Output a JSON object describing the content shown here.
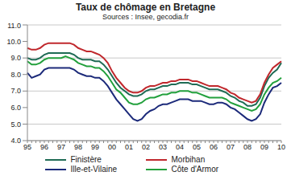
{
  "chart_data": {
    "type": "line",
    "title": "Taux de chômage en Bretagne",
    "subtitle": "Sources : Insee, gecodia.fr",
    "categories": [
      "95",
      null,
      null,
      null,
      "96",
      null,
      null,
      null,
      "97",
      null,
      null,
      null,
      "98",
      null,
      null,
      null,
      "99",
      null,
      null,
      null,
      "00",
      null,
      null,
      null,
      "01",
      null,
      null,
      null,
      "02",
      null,
      null,
      null,
      "03",
      null,
      null,
      null,
      "04",
      null,
      null,
      null,
      "05",
      null,
      null,
      null,
      "06",
      null,
      null,
      null,
      "07",
      null,
      null,
      null,
      "08",
      null,
      null,
      null,
      "09",
      null,
      null,
      null,
      "10"
    ],
    "series": [
      {
        "name": "Finistère",
        "color": "#1f6b55",
        "values": [
          9.0,
          8.9,
          8.9,
          9.0,
          9.2,
          9.3,
          9.3,
          9.3,
          9.3,
          9.3,
          9.3,
          9.2,
          9.0,
          8.9,
          8.9,
          8.9,
          8.8,
          8.8,
          8.6,
          8.3,
          7.9,
          7.5,
          7.2,
          7.0,
          6.8,
          6.7,
          6.7,
          6.8,
          7.0,
          7.1,
          7.1,
          7.2,
          7.3,
          7.3,
          7.4,
          7.4,
          7.5,
          7.5,
          7.5,
          7.4,
          7.4,
          7.3,
          7.2,
          7.1,
          7.1,
          7.1,
          7.0,
          6.9,
          6.7,
          6.6,
          6.4,
          6.3,
          6.1,
          6.1,
          6.2,
          6.6,
          7.3,
          7.8,
          8.1,
          8.3,
          8.7
        ]
      },
      {
        "name": "Morbihan",
        "color": "#c0282d",
        "values": [
          9.6,
          9.5,
          9.5,
          9.6,
          9.8,
          9.9,
          9.9,
          9.9,
          9.9,
          9.9,
          9.9,
          9.8,
          9.6,
          9.5,
          9.4,
          9.4,
          9.3,
          9.2,
          9.0,
          8.7,
          8.2,
          7.8,
          7.5,
          7.2,
          7.0,
          6.9,
          6.9,
          7.0,
          7.2,
          7.3,
          7.3,
          7.4,
          7.5,
          7.5,
          7.6,
          7.6,
          7.7,
          7.7,
          7.7,
          7.6,
          7.6,
          7.5,
          7.4,
          7.3,
          7.3,
          7.3,
          7.2,
          7.1,
          6.9,
          6.8,
          6.6,
          6.5,
          6.4,
          6.3,
          6.4,
          6.8,
          7.5,
          8.0,
          8.4,
          8.6,
          8.8
        ]
      },
      {
        "name": "Ille-et-Vilaine",
        "color": "#1c2a7a",
        "values": [
          8.1,
          7.8,
          7.9,
          8.0,
          8.3,
          8.4,
          8.4,
          8.4,
          8.4,
          8.4,
          8.4,
          8.3,
          8.1,
          8.0,
          7.9,
          7.9,
          7.8,
          7.8,
          7.6,
          7.3,
          6.9,
          6.5,
          6.2,
          5.9,
          5.6,
          5.3,
          5.2,
          5.3,
          5.6,
          5.8,
          5.9,
          6.1,
          6.2,
          6.2,
          6.3,
          6.4,
          6.5,
          6.5,
          6.5,
          6.4,
          6.4,
          6.4,
          6.3,
          6.2,
          6.2,
          6.3,
          6.3,
          6.2,
          6.0,
          5.9,
          5.7,
          5.5,
          5.3,
          5.2,
          5.3,
          5.6,
          6.3,
          6.8,
          7.2,
          7.3,
          7.5
        ]
      },
      {
        "name": "Côte d'Armor",
        "color": "#22a03c",
        "values": [
          8.8,
          8.6,
          8.6,
          8.7,
          8.9,
          9.0,
          9.0,
          9.0,
          9.0,
          9.1,
          9.0,
          8.9,
          8.7,
          8.6,
          8.5,
          8.5,
          8.4,
          8.4,
          8.2,
          7.9,
          7.5,
          7.1,
          6.9,
          6.6,
          6.3,
          6.2,
          6.2,
          6.3,
          6.5,
          6.6,
          6.6,
          6.7,
          6.8,
          6.8,
          6.9,
          6.9,
          7.0,
          7.0,
          7.0,
          6.9,
          6.9,
          6.8,
          6.7,
          6.6,
          6.6,
          6.6,
          6.6,
          6.5,
          6.3,
          6.2,
          6.1,
          6.0,
          5.9,
          5.8,
          5.9,
          6.2,
          6.8,
          7.2,
          7.5,
          7.6,
          7.8
        ]
      }
    ],
    "ylim": [
      4,
      11
    ],
    "yticks": [
      {
        "value": 4,
        "label": "4.0"
      },
      {
        "value": 5,
        "label": "5.0"
      },
      {
        "value": 6,
        "label": "6.0"
      },
      {
        "value": 7,
        "label": "7.0"
      },
      {
        "value": 8,
        "label": "8.0"
      },
      {
        "value": 9,
        "label": "9.0"
      },
      {
        "value": 10,
        "label": "10.0"
      },
      {
        "value": 11,
        "label": "11.0"
      }
    ],
    "grid": true,
    "legend": "bottom"
  }
}
